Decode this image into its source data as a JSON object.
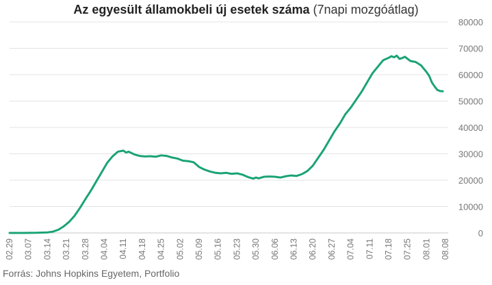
{
  "chart_data": {
    "type": "line",
    "title_bold": "Az egyesült államokbeli új esetek száma",
    "title_rest": "(7napi mozgóátlag)",
    "xlabel": "",
    "ylabel": "",
    "ylim": [
      0,
      80000
    ],
    "yticks": [
      0,
      10000,
      20000,
      30000,
      40000,
      50000,
      60000,
      70000,
      80000
    ],
    "ytick_labels": [
      "0",
      "10000",
      "20000",
      "30000",
      "40000",
      "50000",
      "60000",
      "70000",
      "80000"
    ],
    "y_axis_side": "right",
    "grid": "horizontal",
    "xtick_labels": [
      "02.29",
      "03.07",
      "03.14",
      "03.21",
      "03.28",
      "04.04",
      "04.11",
      "04.18",
      "04.25",
      "05.02",
      "05.09",
      "05.16",
      "05.23",
      "05.30",
      "06.06",
      "06.13",
      "06.20",
      "06.27",
      "07.04",
      "07.11",
      "07.18",
      "07.25",
      "08.01",
      "08.08"
    ],
    "xtick_days": [
      0,
      7,
      14,
      21,
      28,
      35,
      42,
      49,
      56,
      63,
      70,
      77,
      84,
      91,
      98,
      105,
      112,
      119,
      126,
      133,
      140,
      147,
      154,
      161
    ],
    "x_range_days": [
      0,
      162
    ],
    "x_unit": "days from 02.29",
    "line_color": "#1aa374",
    "series": [
      {
        "values": [
          [
            0,
            0
          ],
          [
            5,
            0
          ],
          [
            10,
            50
          ],
          [
            14,
            200
          ],
          [
            16,
            500
          ],
          [
            18,
            1200
          ],
          [
            20,
            2500
          ],
          [
            22,
            4200
          ],
          [
            24,
            6500
          ],
          [
            26,
            9500
          ],
          [
            28,
            12800
          ],
          [
            30,
            16000
          ],
          [
            32,
            19500
          ],
          [
            34,
            23000
          ],
          [
            36,
            26500
          ],
          [
            38,
            29000
          ],
          [
            40,
            30800
          ],
          [
            42,
            31200
          ],
          [
            43,
            30500
          ],
          [
            44,
            30800
          ],
          [
            46,
            29800
          ],
          [
            48,
            29200
          ],
          [
            50,
            29000
          ],
          [
            52,
            29100
          ],
          [
            54,
            28900
          ],
          [
            56,
            29400
          ],
          [
            58,
            29200
          ],
          [
            60,
            28600
          ],
          [
            62,
            28200
          ],
          [
            64,
            27400
          ],
          [
            66,
            27200
          ],
          [
            68,
            26800
          ],
          [
            70,
            25000
          ],
          [
            72,
            24000
          ],
          [
            74,
            23300
          ],
          [
            76,
            22800
          ],
          [
            78,
            22600
          ],
          [
            80,
            22800
          ],
          [
            82,
            22400
          ],
          [
            84,
            22600
          ],
          [
            86,
            22100
          ],
          [
            88,
            21200
          ],
          [
            90,
            20600
          ],
          [
            91,
            21000
          ],
          [
            92,
            20700
          ],
          [
            94,
            21300
          ],
          [
            96,
            21400
          ],
          [
            98,
            21300
          ],
          [
            100,
            21000
          ],
          [
            102,
            21500
          ],
          [
            104,
            21800
          ],
          [
            106,
            21600
          ],
          [
            108,
            22300
          ],
          [
            110,
            23500
          ],
          [
            112,
            25500
          ],
          [
            114,
            28500
          ],
          [
            116,
            31500
          ],
          [
            118,
            35000
          ],
          [
            120,
            38500
          ],
          [
            122,
            41500
          ],
          [
            124,
            45000
          ],
          [
            126,
            47500
          ],
          [
            128,
            50500
          ],
          [
            130,
            53500
          ],
          [
            132,
            57000
          ],
          [
            134,
            60500
          ],
          [
            136,
            63000
          ],
          [
            138,
            65500
          ],
          [
            140,
            66400
          ],
          [
            141,
            67000
          ],
          [
            142,
            66600
          ],
          [
            143,
            67200
          ],
          [
            144,
            66000
          ],
          [
            145,
            66300
          ],
          [
            146,
            66800
          ],
          [
            148,
            65200
          ],
          [
            150,
            64800
          ],
          [
            152,
            63500
          ],
          [
            154,
            61000
          ],
          [
            155,
            59500
          ],
          [
            156,
            57000
          ],
          [
            157,
            55500
          ],
          [
            158,
            54200
          ],
          [
            159,
            53800
          ],
          [
            160,
            53700
          ]
        ]
      }
    ]
  },
  "source": "Forrás: Johns Hopkins Egyetem, Portfolio"
}
